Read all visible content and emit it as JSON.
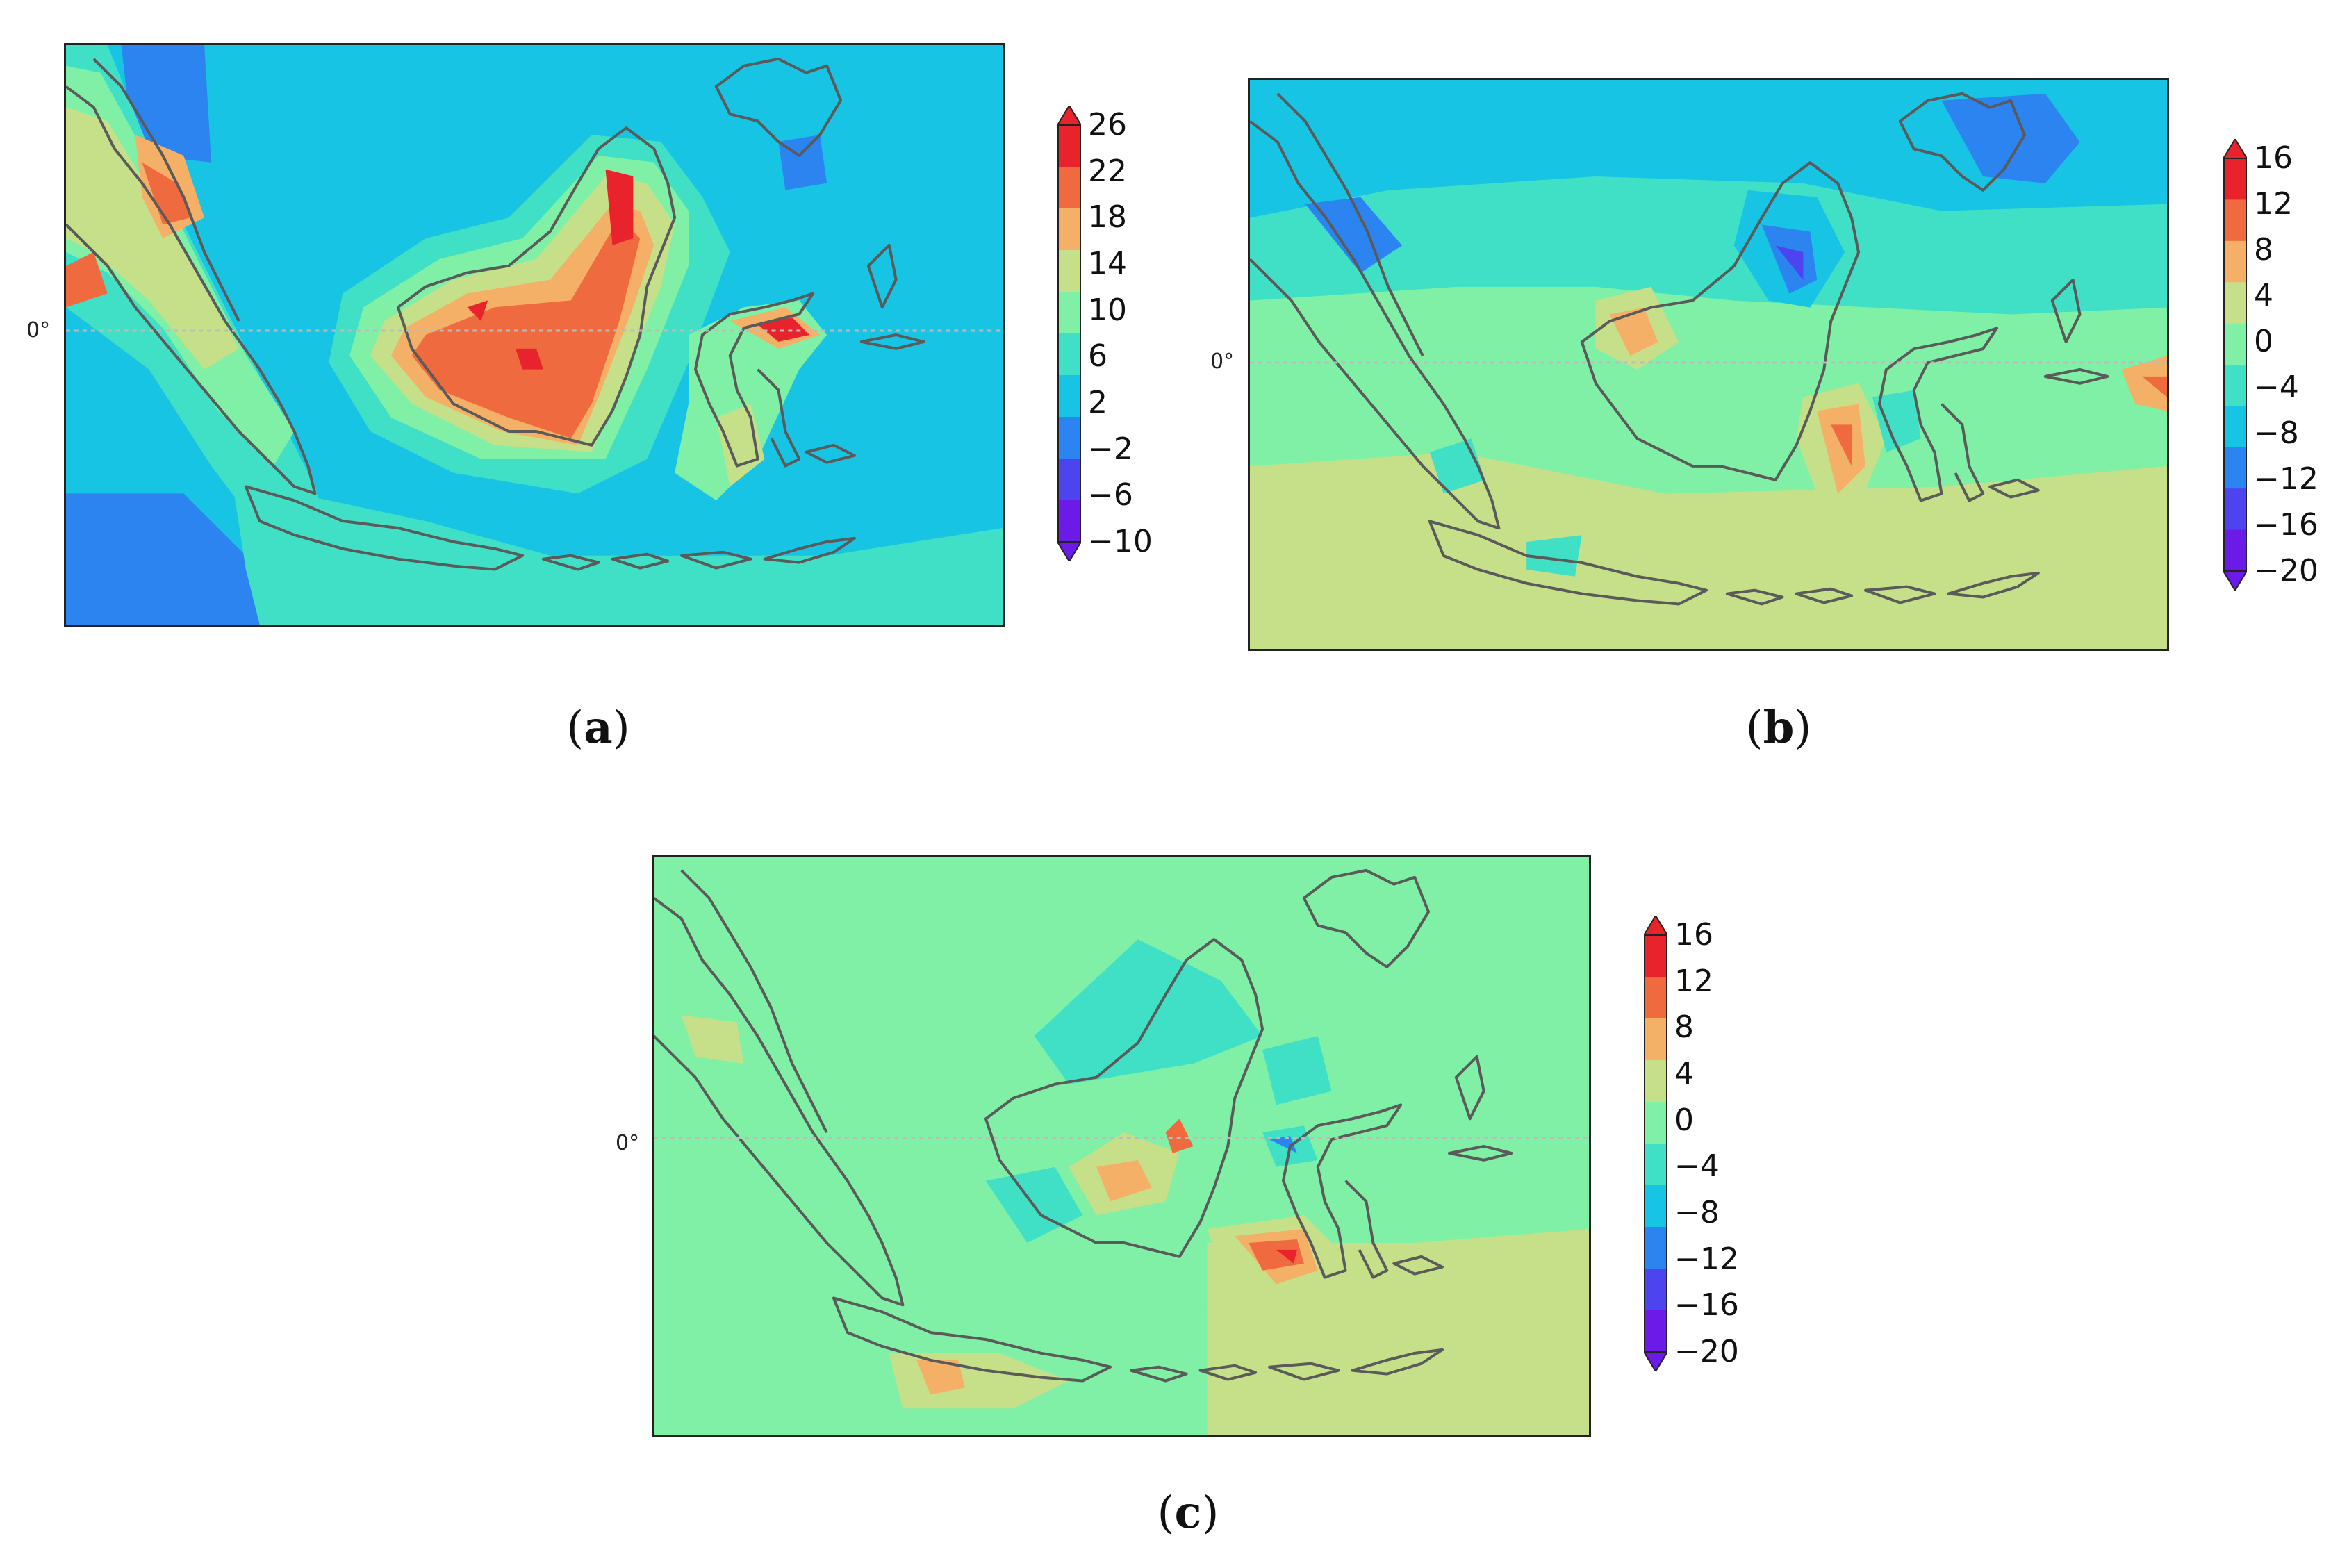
{
  "equator_label": "0°",
  "panels": [
    {
      "id": "a",
      "label_open": "(",
      "label_letter": "a",
      "label_close": ")",
      "colorbar_ticks": [
        "26",
        "22",
        "18",
        "14",
        "10",
        "6",
        "2",
        "−2",
        "−6",
        "−10"
      ],
      "colorbar_colors": [
        "#e8232b",
        "#ef6a3e",
        "#f4b066",
        "#c6e08a",
        "#7ff0a6",
        "#3fe0c6",
        "#17c4e3",
        "#2b84f0",
        "#4d44ef",
        "#6b1ae8"
      ]
    },
    {
      "id": "b",
      "label_open": "(",
      "label_letter": "b",
      "label_close": ")",
      "colorbar_ticks": [
        "16",
        "12",
        "8",
        "4",
        "0",
        "−4",
        "−8",
        "−12",
        "−16",
        "−20"
      ],
      "colorbar_colors": [
        "#e8232b",
        "#ef6a3e",
        "#f4b066",
        "#c6e08a",
        "#7ff0a6",
        "#3fe0c6",
        "#17c4e3",
        "#2b84f0",
        "#4d44ef",
        "#6b1ae8"
      ]
    },
    {
      "id": "c",
      "label_open": "(",
      "label_letter": "c",
      "label_close": ")",
      "colorbar_ticks": [
        "16",
        "12",
        "8",
        "4",
        "0",
        "−4",
        "−8",
        "−12",
        "−16",
        "−20"
      ],
      "colorbar_colors": [
        "#e8232b",
        "#ef6a3e",
        "#f4b066",
        "#c6e08a",
        "#7ff0a6",
        "#3fe0c6",
        "#17c4e3",
        "#2b84f0",
        "#4d44ef",
        "#6b1ae8"
      ]
    }
  ]
}
